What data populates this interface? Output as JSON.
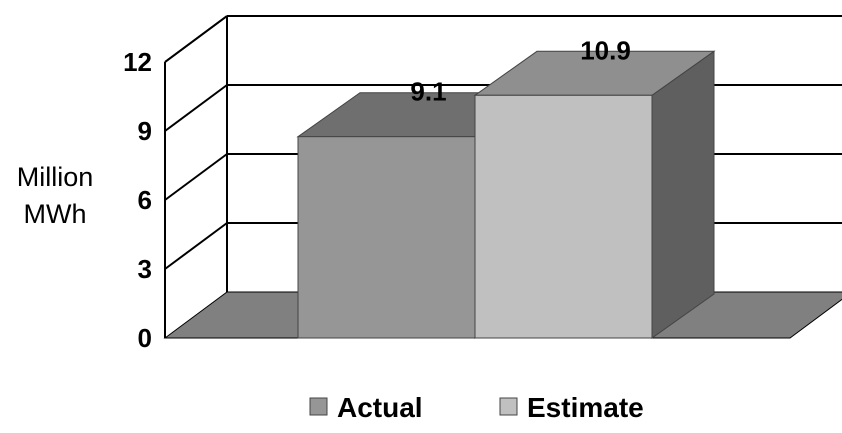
{
  "chart_data": {
    "type": "bar",
    "style": "3d-clustered",
    "categories": [
      ""
    ],
    "series": [
      {
        "name": "Actual",
        "values": [
          9.1
        ],
        "color": "#969696"
      },
      {
        "name": "Estimate",
        "values": [
          10.9
        ],
        "color": "#C0C0C0"
      }
    ],
    "data_labels": [
      "9.1",
      "10.9"
    ],
    "ylabel": [
      "Million",
      "MWh"
    ],
    "xlabel": "",
    "title": "",
    "ylim": [
      0,
      12
    ],
    "yticks": [
      0,
      3,
      6,
      9,
      12
    ],
    "grid": true,
    "legend": {
      "position": "bottom",
      "entries": [
        "Actual",
        "Estimate"
      ]
    },
    "colors": {
      "floor": "#808080",
      "gridline": "#000000",
      "actual_side": "#5f5f5f",
      "actual_top": "#6f6f6f",
      "estimate_side": "#5f5f5f",
      "estimate_top": "#8f8f8f"
    }
  }
}
